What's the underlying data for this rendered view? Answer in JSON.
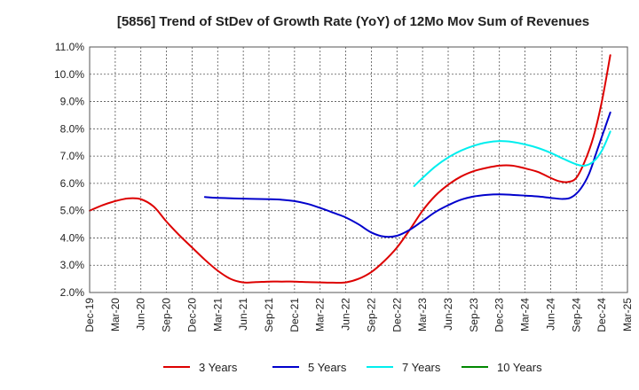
{
  "chart_data": {
    "type": "line",
    "title": "[5856]  Trend of StDev of Growth Rate (YoY) of 12Mo Mov Sum of Revenues",
    "xlabel": "",
    "ylabel": "",
    "categories": [
      "Dec-19",
      "Mar-20",
      "Jun-20",
      "Sep-20",
      "Dec-20",
      "Mar-21",
      "Jun-21",
      "Sep-21",
      "Dec-21",
      "Mar-22",
      "Jun-22",
      "Sep-22",
      "Dec-22",
      "Mar-23",
      "Jun-23",
      "Sep-23",
      "Dec-23",
      "Mar-24",
      "Jun-24",
      "Sep-24",
      "Dec-24",
      "Mar-25"
    ],
    "y_ticks": [
      "2.0%",
      "3.0%",
      "4.0%",
      "5.0%",
      "6.0%",
      "7.0%",
      "8.0%",
      "9.0%",
      "10.0%",
      "11.0%"
    ],
    "ylim": [
      2.0,
      11.0
    ],
    "grid": true,
    "legend_position": "bottom",
    "series": [
      {
        "name": "3 Years",
        "color": "#dd0000",
        "points": [
          [
            0,
            5.0
          ],
          [
            0.5,
            5.2
          ],
          [
            1,
            5.35
          ],
          [
            1.5,
            5.45
          ],
          [
            2,
            5.42
          ],
          [
            2.5,
            5.15
          ],
          [
            3,
            4.6
          ],
          [
            3.5,
            4.1
          ],
          [
            4,
            3.65
          ],
          [
            4.5,
            3.2
          ],
          [
            5,
            2.8
          ],
          [
            5.5,
            2.5
          ],
          [
            6,
            2.37
          ],
          [
            6.5,
            2.38
          ],
          [
            7,
            2.4
          ],
          [
            7.5,
            2.4
          ],
          [
            8,
            2.4
          ],
          [
            8.5,
            2.38
          ],
          [
            9,
            2.37
          ],
          [
            9.5,
            2.36
          ],
          [
            10,
            2.37
          ],
          [
            10.5,
            2.5
          ],
          [
            11,
            2.75
          ],
          [
            11.5,
            3.15
          ],
          [
            12,
            3.65
          ],
          [
            12.5,
            4.3
          ],
          [
            13,
            5.0
          ],
          [
            13.5,
            5.55
          ],
          [
            14,
            5.95
          ],
          [
            14.5,
            6.25
          ],
          [
            15,
            6.45
          ],
          [
            15.5,
            6.57
          ],
          [
            16,
            6.65
          ],
          [
            16.5,
            6.65
          ],
          [
            17,
            6.55
          ],
          [
            17.5,
            6.42
          ],
          [
            18,
            6.2
          ],
          [
            18.33,
            6.08
          ],
          [
            18.67,
            6.05
          ],
          [
            19,
            6.2
          ],
          [
            19.33,
            6.8
          ],
          [
            19.67,
            7.7
          ],
          [
            20,
            9.0
          ],
          [
            20.33,
            10.7
          ]
        ]
      },
      {
        "name": "5 Years",
        "color": "#0000cc",
        "points": [
          [
            4.5,
            5.5
          ],
          [
            5,
            5.47
          ],
          [
            6,
            5.44
          ],
          [
            7,
            5.42
          ],
          [
            7.5,
            5.4
          ],
          [
            8,
            5.35
          ],
          [
            8.5,
            5.25
          ],
          [
            9,
            5.1
          ],
          [
            9.5,
            4.93
          ],
          [
            10,
            4.75
          ],
          [
            10.5,
            4.5
          ],
          [
            11,
            4.2
          ],
          [
            11.5,
            4.05
          ],
          [
            12,
            4.08
          ],
          [
            12.5,
            4.3
          ],
          [
            13,
            4.62
          ],
          [
            13.5,
            4.95
          ],
          [
            14,
            5.2
          ],
          [
            14.5,
            5.4
          ],
          [
            15,
            5.52
          ],
          [
            15.5,
            5.58
          ],
          [
            16,
            5.6
          ],
          [
            16.5,
            5.58
          ],
          [
            17,
            5.55
          ],
          [
            17.5,
            5.52
          ],
          [
            18,
            5.47
          ],
          [
            18.5,
            5.43
          ],
          [
            18.83,
            5.5
          ],
          [
            19.17,
            5.8
          ],
          [
            19.5,
            6.35
          ],
          [
            19.83,
            7.25
          ],
          [
            20.33,
            8.6
          ]
        ]
      },
      {
        "name": "7 Years",
        "color": "#00eeee",
        "points": [
          [
            12.67,
            5.9
          ],
          [
            13,
            6.2
          ],
          [
            13.5,
            6.62
          ],
          [
            14,
            6.95
          ],
          [
            14.5,
            7.2
          ],
          [
            15,
            7.38
          ],
          [
            15.5,
            7.5
          ],
          [
            16,
            7.55
          ],
          [
            16.5,
            7.52
          ],
          [
            17,
            7.43
          ],
          [
            17.5,
            7.3
          ],
          [
            18,
            7.12
          ],
          [
            18.5,
            6.9
          ],
          [
            19,
            6.7
          ],
          [
            19.33,
            6.65
          ],
          [
            19.67,
            6.8
          ],
          [
            20,
            7.2
          ],
          [
            20.33,
            7.9
          ]
        ]
      },
      {
        "name": "10 Years",
        "color": "#008800",
        "points": []
      }
    ]
  }
}
